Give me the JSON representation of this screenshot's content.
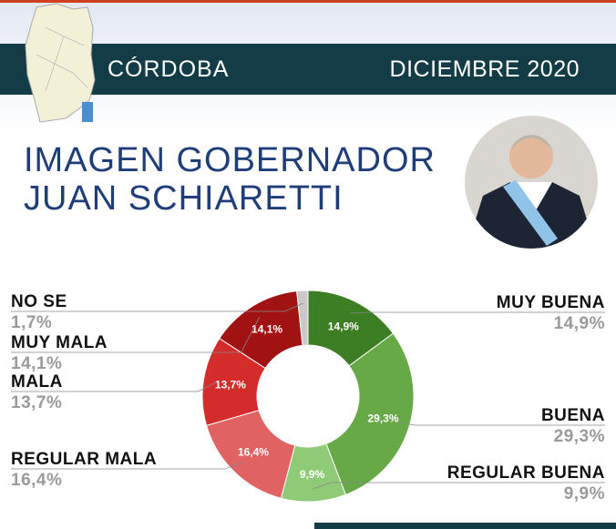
{
  "header": {
    "region": "CÓRDOBA",
    "date": "DICIEMBRE 2020"
  },
  "title": {
    "line1": "IMAGEN GOBERNADOR",
    "line2": "JUAN SCHIARETTI"
  },
  "chart_data": {
    "type": "donut",
    "categories": [
      "MUY BUENA",
      "BUENA",
      "REGULAR BUENA",
      "REGULAR MALA",
      "MALA",
      "MUY MALA",
      "NO SE"
    ],
    "values": [
      14.9,
      29.3,
      9.9,
      16.4,
      13.7,
      14.1,
      1.7
    ],
    "value_labels": [
      "14,9%",
      "29,3%",
      "9,9%",
      "16,4%",
      "13,7%",
      "14,1%",
      "1,7%"
    ],
    "colors": [
      "#3b7e23",
      "#67a847",
      "#8fca77",
      "#e06263",
      "#d42b2b",
      "#a11212",
      "#c9c9c9"
    ]
  }
}
